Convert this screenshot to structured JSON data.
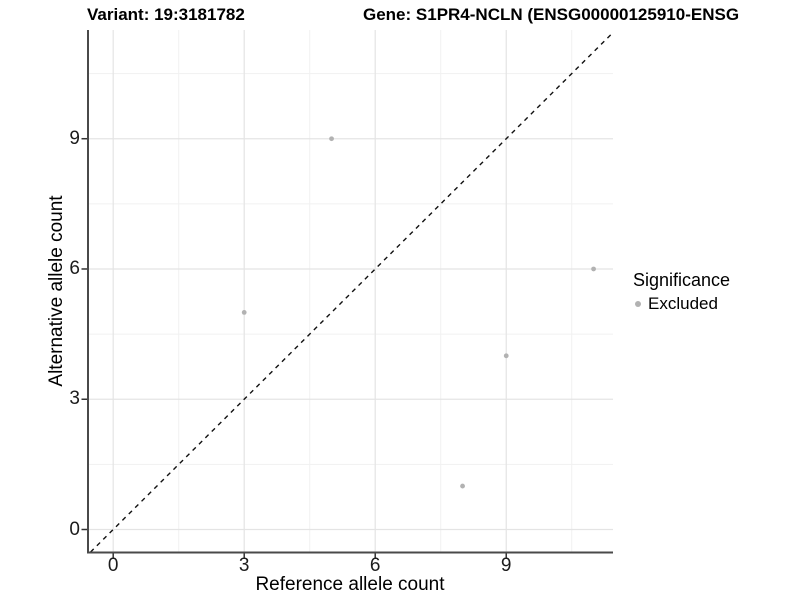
{
  "chart_data": {
    "type": "scatter",
    "title_left": "Variant: 19:3181782",
    "title_right": "Gene: S1PR4-NCLN (ENSG00000125910-ENSG",
    "xlabel": "Reference allele count",
    "ylabel": "Alternative allele count",
    "xlim": [
      -0.58,
      11.45
    ],
    "ylim": [
      -0.52,
      11.5
    ],
    "xticks": [
      0,
      3,
      6,
      9
    ],
    "yticks": [
      0,
      3,
      6,
      9
    ],
    "minor_xticks": [
      1.5,
      4.5,
      7.5,
      10.5
    ],
    "minor_yticks": [
      1.5,
      4.5,
      7.5,
      10.5
    ],
    "grid": true,
    "series": [
      {
        "name": "Excluded",
        "color": "#b2b2b2",
        "points": [
          [
            3,
            5
          ],
          [
            5,
            9
          ],
          [
            8,
            1
          ],
          [
            9,
            4
          ],
          [
            11,
            6
          ]
        ]
      }
    ],
    "reference_line": {
      "type": "identity",
      "slope": 1,
      "intercept": 0,
      "style": "dashed",
      "color": "#111111"
    },
    "legend": {
      "title": "Significance",
      "position": "right",
      "items": [
        {
          "label": "Excluded",
          "color": "#b2b2b2",
          "marker": "circle-icon"
        }
      ]
    }
  },
  "style": {
    "background": "#ffffff",
    "major_grid_color": "#e4e4e4",
    "minor_grid_color": "#f1f1f1",
    "axis_line_color": "#4a4a4a",
    "tick_mark_color": "#333333",
    "point_color": "#b2b2b2"
  }
}
